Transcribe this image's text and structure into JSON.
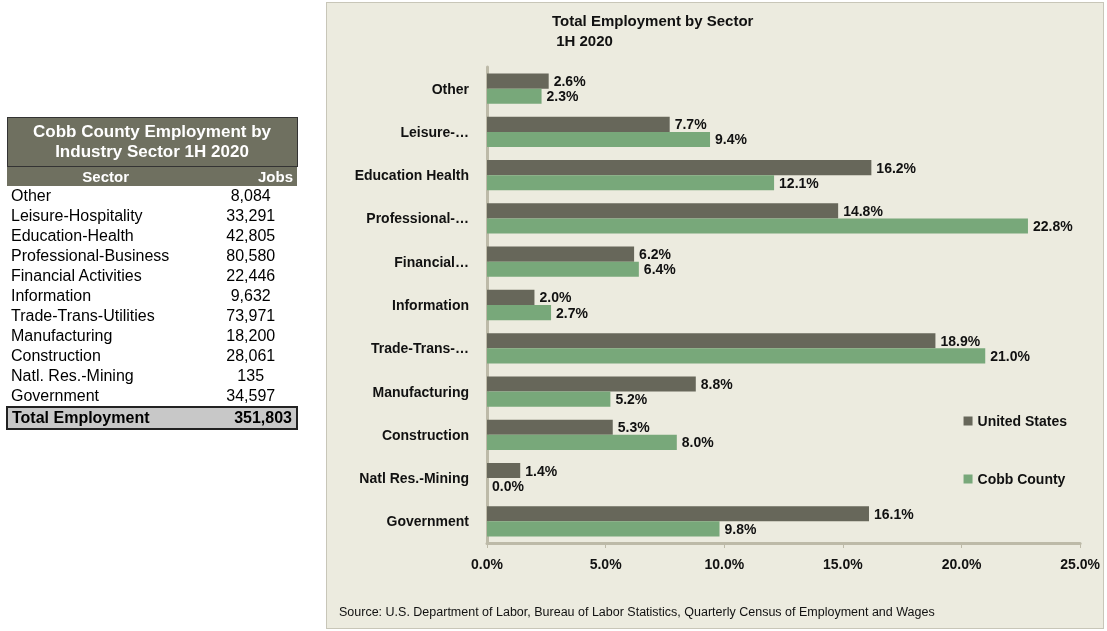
{
  "chart_data": [
    {
      "type": "other",
      "title": "Cobb County Employment by Industry Sector 1H 2020",
      "xlabel": "Sector",
      "ylabel": "Jobs",
      "categories": [
        "Other",
        "Leisure-Hospitality",
        "Education-Health",
        "Professional-Business",
        "Financial Activities",
        "Information",
        "Trade-Trans-Utilities",
        "Manufacturing",
        "Construction",
        "Natl. Res.-Mining",
        "Government"
      ],
      "value_labels": [
        "8,084",
        "33,291",
        "42,805",
        "80,580",
        "22,446",
        "9,632",
        "73,971",
        "18,200",
        "28,061",
        "135",
        "34,597"
      ],
      "annotations": [
        "Total Employment",
        "351,803"
      ]
    },
    {
      "type": "bar",
      "orientation": "horizontal",
      "title": "Total Employment by Sector  1H 2020",
      "categories": [
        "Other",
        "Leisure-…",
        "Education Health",
        "Professional-…",
        "Financial…",
        "Information",
        "Trade-Trans-…",
        "Manufacturing",
        "Construction",
        "Natl Res.-Mining",
        "Government"
      ],
      "series": [
        {
          "name": "United States",
          "color": "#67675a",
          "values": [
            2.6,
            7.7,
            16.2,
            14.8,
            6.2,
            2.0,
            18.9,
            8.8,
            5.3,
            1.4,
            16.1
          ],
          "value_labels": [
            "2.6%",
            "7.7%",
            "16.2%",
            "14.8%",
            "6.2%",
            "2.0%",
            "18.9%",
            "8.8%",
            "5.3%",
            "1.4%",
            "16.1%"
          ]
        },
        {
          "name": "Cobb County",
          "color": "#78a87a",
          "values": [
            2.3,
            9.4,
            12.1,
            22.8,
            6.4,
            2.7,
            21.0,
            5.2,
            8.0,
            0.0,
            9.8
          ],
          "value_labels": [
            "2.3%",
            "9.4%",
            "12.1%",
            "22.8%",
            "6.4%",
            "2.7%",
            "21.0%",
            "5.2%",
            "8.0%",
            "0.0%",
            "9.8%"
          ]
        }
      ],
      "xlim": [
        0,
        25
      ],
      "xticks": [
        {
          "value": 0,
          "label": "0.0%"
        },
        {
          "value": 5,
          "label": "5.0%"
        },
        {
          "value": 10,
          "label": "10.0%"
        },
        {
          "value": 15,
          "label": "15.0%"
        },
        {
          "value": 20,
          "label": "20.0%"
        },
        {
          "value": 25,
          "label": "25.0%"
        }
      ],
      "grid": false,
      "legend": "right",
      "annotations": [
        "Source: U.S. Department of Labor, Bureau of Labor Statistics, Quarterly Census of Employment and Wages"
      ]
    }
  ]
}
